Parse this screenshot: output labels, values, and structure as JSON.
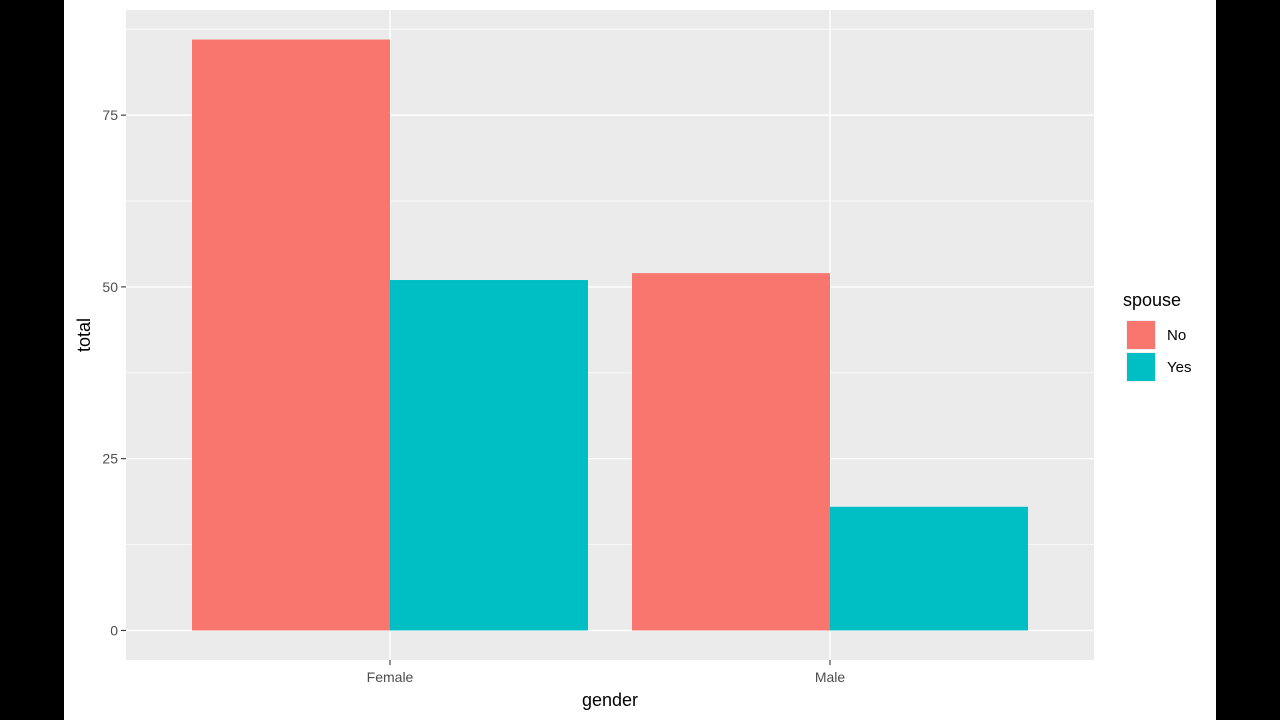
{
  "chart_data": {
    "type": "bar",
    "title": "",
    "xlabel": "gender",
    "ylabel": "total",
    "categories": [
      "Female",
      "Male"
    ],
    "series": [
      {
        "name": "No",
        "values": [
          86,
          52
        ],
        "color": "#F8766D"
      },
      {
        "name": "Yes",
        "values": [
          51,
          18
        ],
        "color": "#00BFC4"
      }
    ],
    "ylim": [
      -4.3,
      90.3
    ],
    "yticks": [
      0,
      25,
      50,
      75
    ],
    "grid": true,
    "legend": {
      "title": "spouse",
      "position": "right"
    },
    "panel_background": "#EBEBEB",
    "grid_color": "#FFFFFF"
  }
}
